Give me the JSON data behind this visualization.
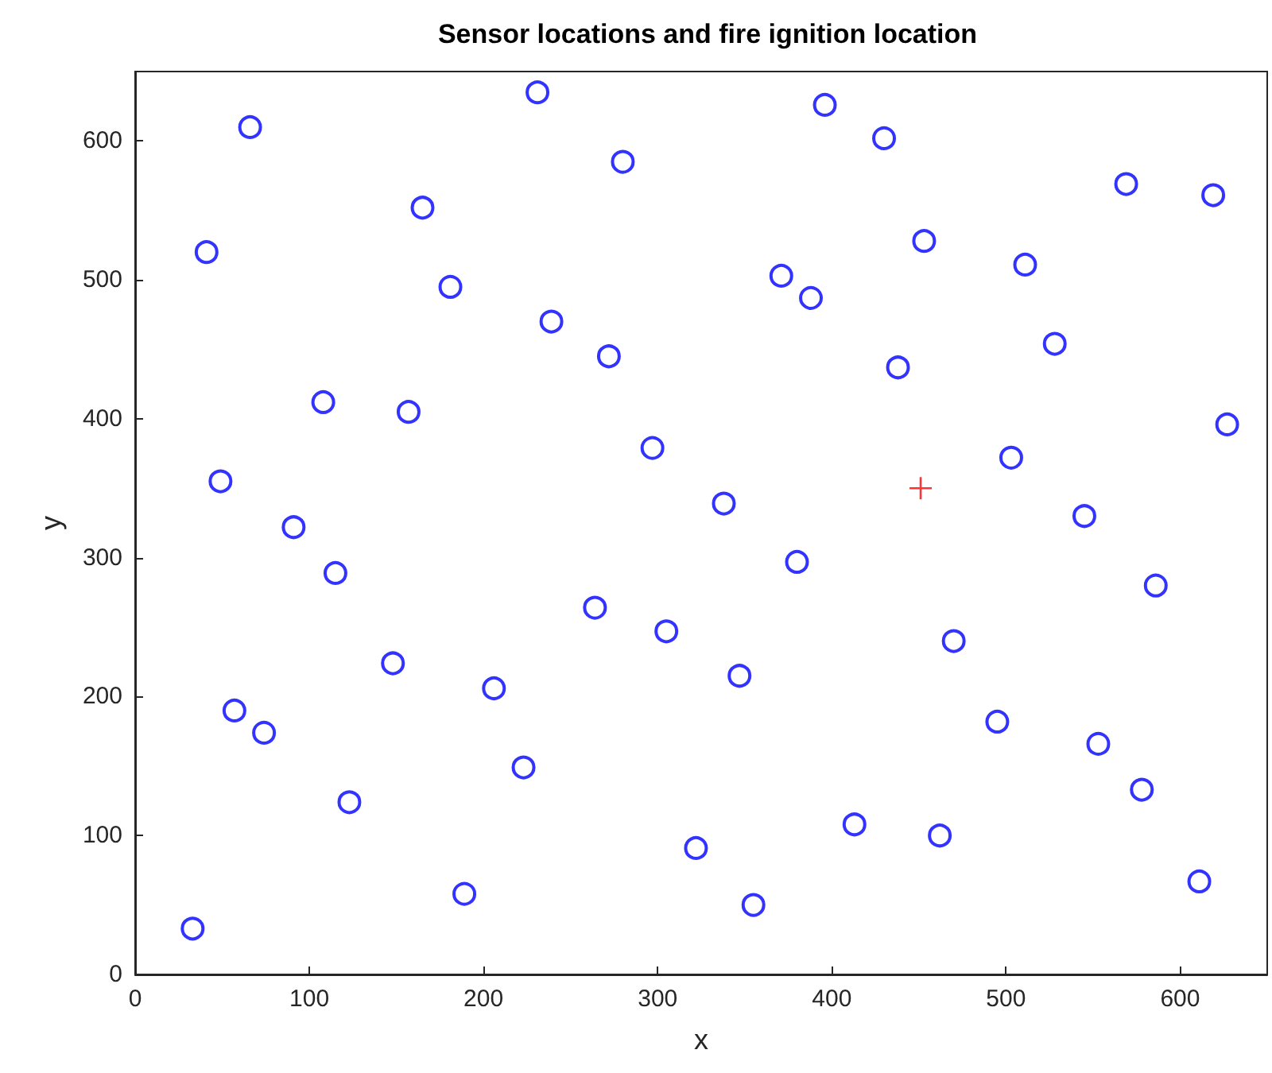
{
  "chart_data": {
    "type": "scatter",
    "title": "Sensor locations and fire ignition location",
    "xlabel": "x",
    "ylabel": "y",
    "xlim": [
      0,
      650
    ],
    "ylim": [
      0,
      650
    ],
    "xticks": [
      0,
      100,
      200,
      300,
      400,
      500,
      600
    ],
    "yticks": [
      0,
      100,
      200,
      300,
      400,
      500,
      600
    ],
    "grid": false,
    "series": [
      {
        "color": "#0000ff",
        "marker": "circle",
        "x": [
          33,
          41,
          66,
          49,
          57,
          74,
          91,
          108,
          115,
          123,
          148,
          157,
          165,
          181,
          189,
          206,
          223,
          231,
          239,
          264,
          272,
          280,
          297,
          305,
          322,
          338,
          347,
          355,
          371,
          380,
          388,
          396,
          413,
          430,
          438,
          453,
          462,
          470,
          495,
          503,
          511,
          528,
          545,
          553,
          569,
          578,
          586,
          611,
          619,
          627
        ],
        "values": [
          33,
          520,
          610,
          355,
          190,
          174,
          322,
          412,
          289,
          124,
          224,
          405,
          552,
          495,
          58,
          206,
          149,
          635,
          470,
          264,
          445,
          585,
          379,
          247,
          91,
          339,
          215,
          50,
          503,
          297,
          487,
          626,
          108,
          602,
          437,
          528,
          100,
          240,
          182,
          372,
          511,
          454,
          330,
          166,
          569,
          133,
          280,
          67,
          561,
          396
        ]
      },
      {
        "color": "#ff0000",
        "marker": "cross",
        "x": [
          451
        ],
        "values": [
          350
        ]
      }
    ]
  }
}
